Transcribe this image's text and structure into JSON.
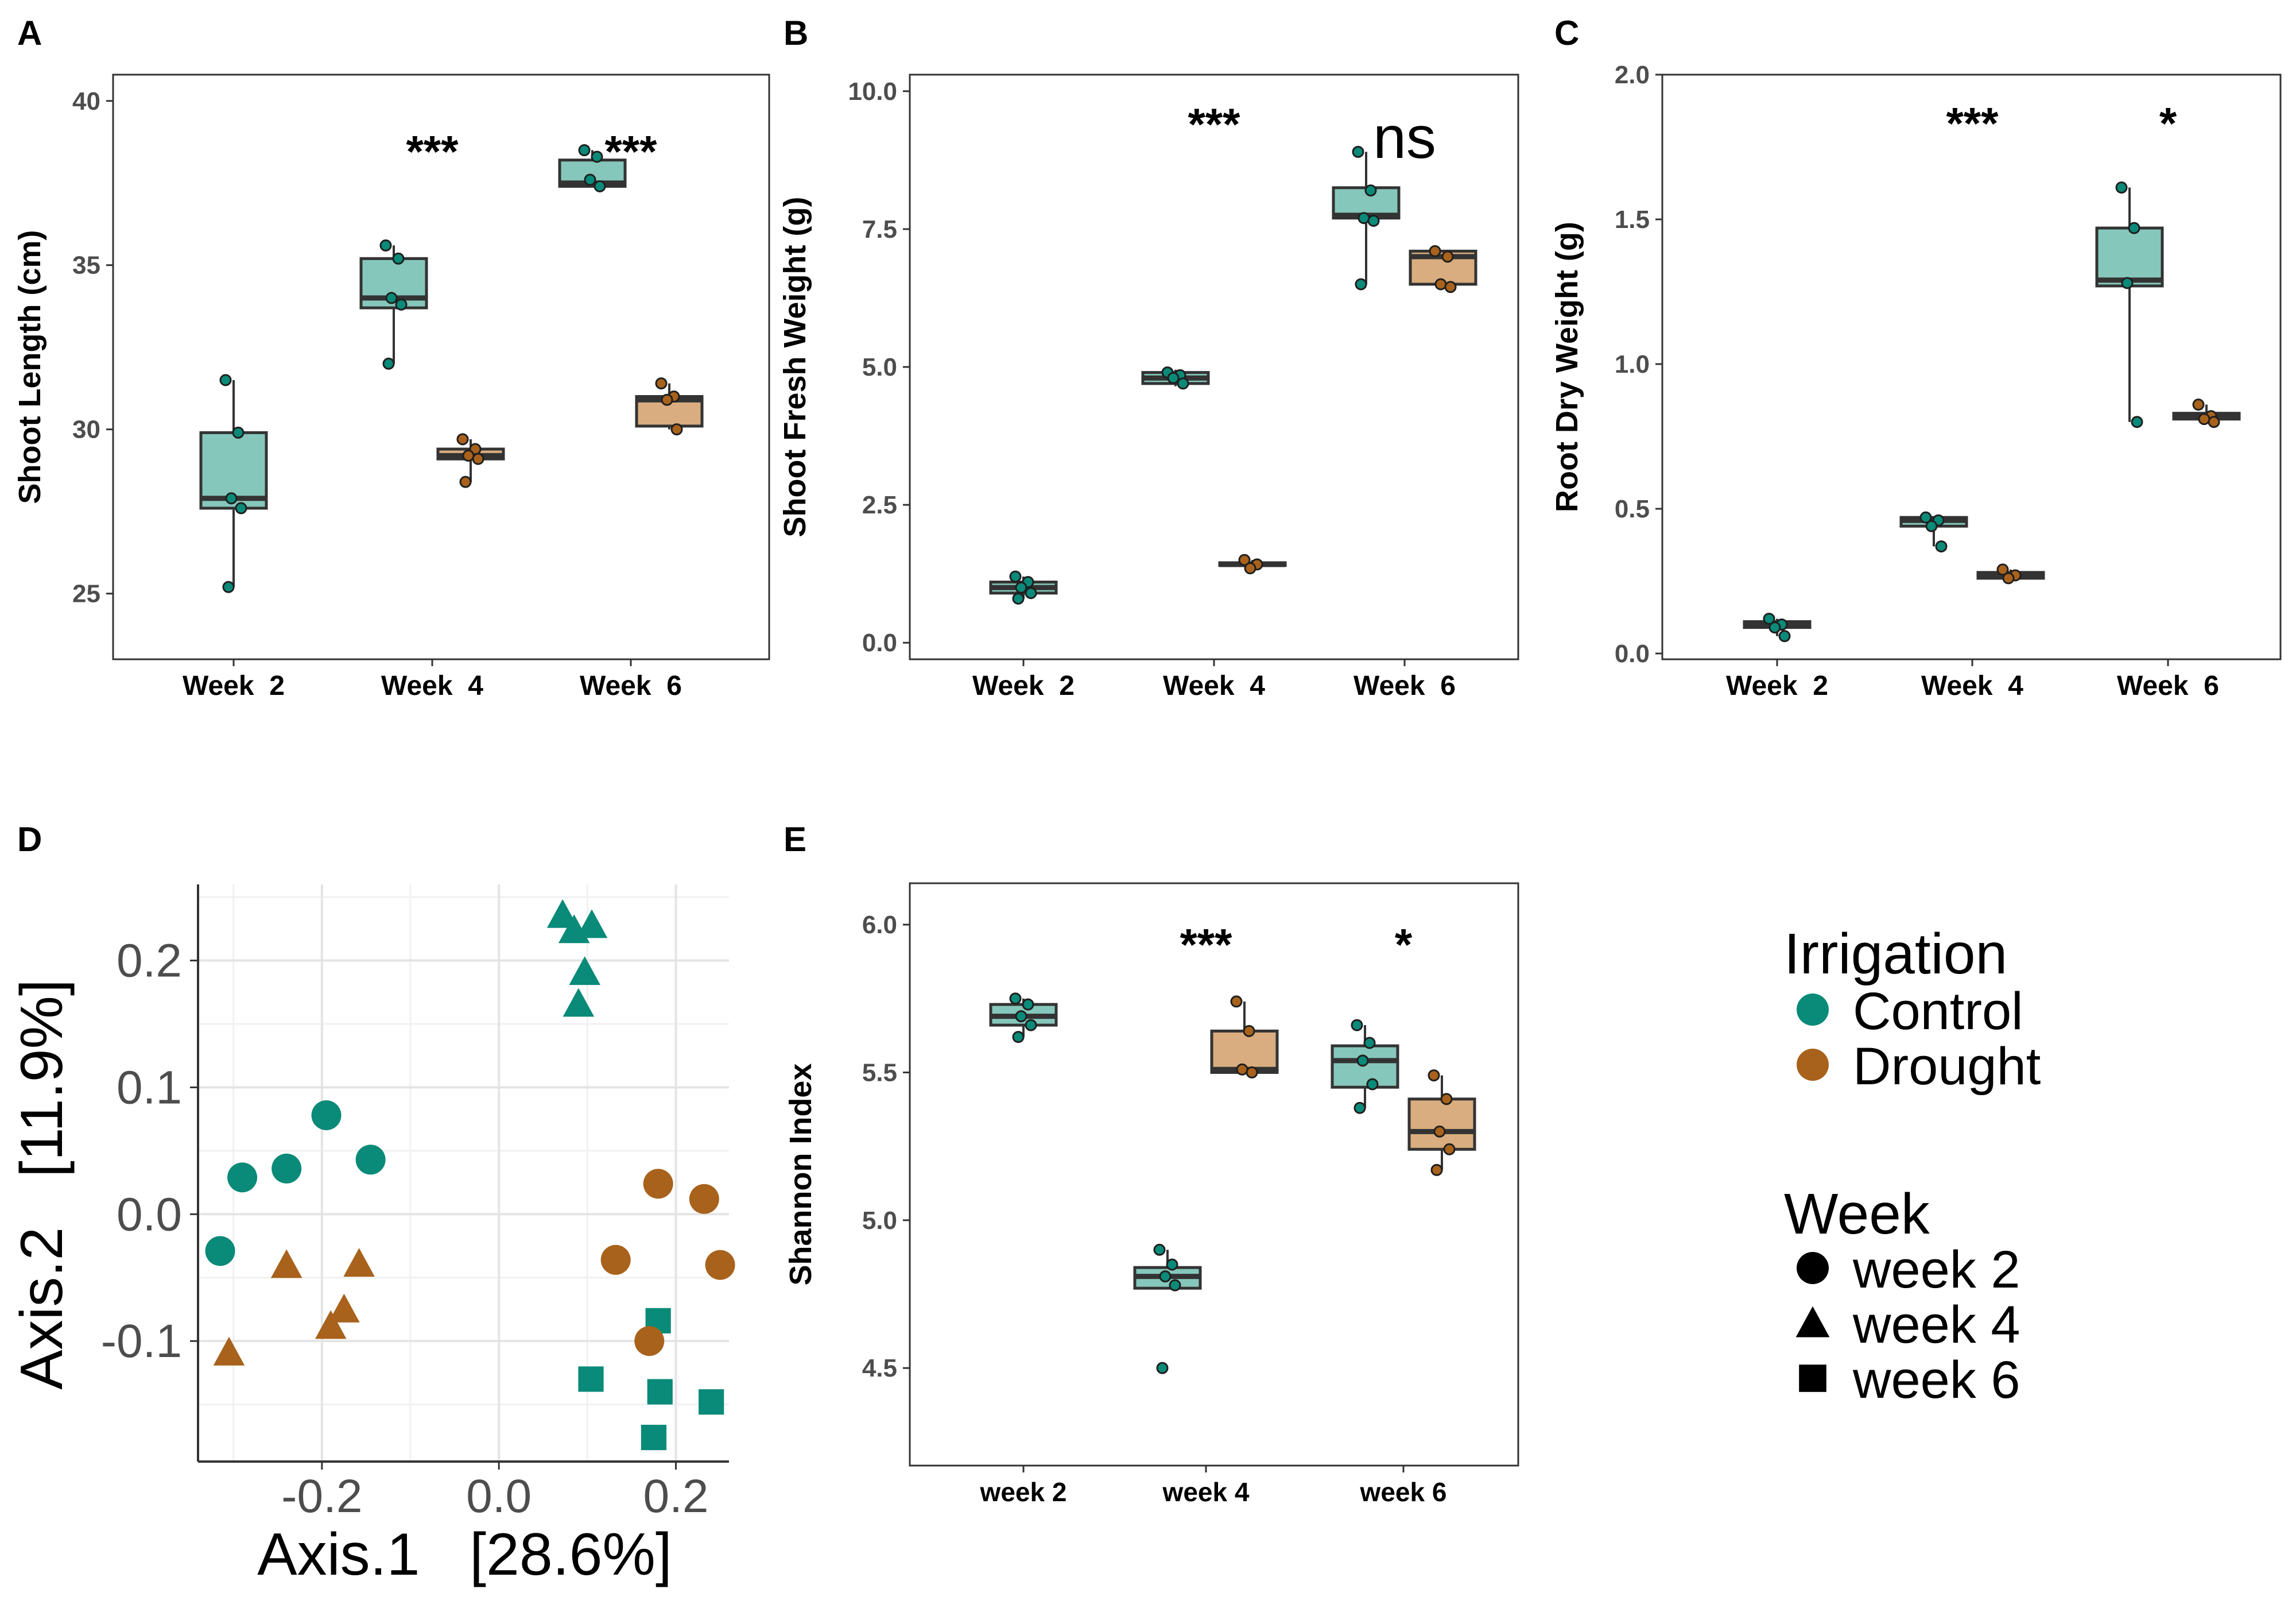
{
  "colors": {
    "control": "#0a8a78",
    "drought": "#a8621c",
    "control_box": "#86c7bb",
    "drought_box": "#d9ad7f",
    "frame": "#333333",
    "grid_major": "#e4e4e4",
    "grid_minor": "#f1f1f1",
    "text": "#000000",
    "tick_text": "#4d4d4d"
  },
  "legend": {
    "irrigation_title": "Irrigation",
    "irrigation_items": [
      {
        "label": "Control",
        "color": "#0a8a78"
      },
      {
        "label": "Drought",
        "color": "#a8621c"
      }
    ],
    "week_title": "Week",
    "week_items": [
      {
        "label": "week 2",
        "shape": "circle"
      },
      {
        "label": "week 4",
        "shape": "triangle"
      },
      {
        "label": "week 6",
        "shape": "square"
      }
    ]
  },
  "chart_data": [
    {
      "panel": "A",
      "type": "box",
      "ylabel": "Shoot Length (cm)",
      "categories": [
        "Week  2",
        "Week  4",
        "Week  6"
      ],
      "ylim": [
        23,
        40.8
      ],
      "yticks": [
        25,
        30,
        35,
        40
      ],
      "tick_labels": [
        "25",
        "30",
        "35",
        "40"
      ],
      "boxes": [
        {
          "cat": 0,
          "group": "Control",
          "q1": 27.6,
          "median": 27.9,
          "q3": 29.9,
          "whisker_low": 25.2,
          "whisker_high": 31.5,
          "points": [
            31.5,
            29.9,
            27.9,
            27.6,
            25.2
          ]
        },
        {
          "cat": 1,
          "group": "Control",
          "q1": 33.7,
          "median": 34.0,
          "q3": 35.2,
          "whisker_low": 32.0,
          "whisker_high": 35.6,
          "points": [
            35.6,
            35.2,
            34.0,
            33.8,
            32.0
          ]
        },
        {
          "cat": 1,
          "group": "Drought",
          "q1": 29.1,
          "median": 29.2,
          "q3": 29.4,
          "whisker_low": 28.4,
          "whisker_high": 29.7,
          "points": [
            29.7,
            29.4,
            29.2,
            29.1,
            28.4
          ]
        },
        {
          "cat": 2,
          "group": "Control",
          "q1": 37.4,
          "median": 37.5,
          "q3": 38.2,
          "whisker_low": 37.4,
          "whisker_high": 38.5,
          "points": [
            38.5,
            38.3,
            37.6,
            37.4
          ]
        },
        {
          "cat": 2,
          "group": "Drought",
          "q1": 30.1,
          "median": 30.9,
          "q3": 31.0,
          "whisker_low": 30.0,
          "whisker_high": 31.4,
          "points": [
            31.4,
            31.0,
            30.9,
            30.0
          ]
        }
      ],
      "annotations": [
        {
          "cat": 1,
          "text": "***",
          "y": 38.8
        },
        {
          "cat": 2,
          "text": "***",
          "y": 38.8
        }
      ]
    },
    {
      "panel": "B",
      "type": "box",
      "ylabel": "Shoot Fresh Weight (g)",
      "categories": [
        "Week  2",
        "Week  4",
        "Week  6"
      ],
      "ylim": [
        -0.3,
        10.3
      ],
      "yticks": [
        0,
        2.5,
        5,
        7.5,
        10
      ],
      "tick_labels": [
        "0.0",
        "2.5",
        "5.0",
        "7.5",
        "10.0"
      ],
      "boxes": [
        {
          "cat": 0,
          "group": "Control",
          "q1": 0.9,
          "median": 1.0,
          "q3": 1.1,
          "whisker_low": 0.8,
          "whisker_high": 1.2,
          "points": [
            1.2,
            1.1,
            1.0,
            0.9,
            0.8
          ]
        },
        {
          "cat": 1,
          "group": "Control",
          "q1": 4.7,
          "median": 4.8,
          "q3": 4.9,
          "whisker_low": 4.65,
          "whisker_high": 4.95,
          "points": [
            4.9,
            4.85,
            4.8,
            4.7
          ]
        },
        {
          "cat": 1,
          "group": "Drought",
          "q1": 1.4,
          "median": 1.42,
          "q3": 1.45,
          "whisker_low": 1.35,
          "whisker_high": 1.5,
          "points": [
            1.5,
            1.42,
            1.35
          ]
        },
        {
          "cat": 2,
          "group": "Control",
          "q1": 7.7,
          "median": 7.75,
          "q3": 8.25,
          "whisker_low": 6.5,
          "whisker_high": 8.9,
          "points": [
            8.9,
            8.2,
            7.7,
            7.65,
            6.5
          ]
        },
        {
          "cat": 2,
          "group": "Drought",
          "q1": 6.5,
          "median": 7.0,
          "q3": 7.1,
          "whisker_low": 6.45,
          "whisker_high": 7.1,
          "points": [
            7.1,
            7.0,
            6.5,
            6.45
          ]
        }
      ],
      "annotations": [
        {
          "cat": 1,
          "text": "***",
          "y": 9.6
        },
        {
          "cat": 2,
          "text": "ns",
          "y": 9.1
        }
      ]
    },
    {
      "panel": "C",
      "type": "box",
      "ylabel": "Root Dry Weight (g)",
      "categories": [
        "Week  2",
        "Week  4",
        "Week  6"
      ],
      "ylim": [
        -0.02,
        2.0
      ],
      "yticks": [
        0,
        0.5,
        1,
        1.5,
        2
      ],
      "tick_labels": [
        "0.0",
        "0.5",
        "1.0",
        "1.5",
        "2.0"
      ],
      "boxes": [
        {
          "cat": 0,
          "group": "Control",
          "q1": 0.09,
          "median": 0.1,
          "q3": 0.11,
          "whisker_low": 0.06,
          "whisker_high": 0.12,
          "points": [
            0.12,
            0.1,
            0.09,
            0.06
          ]
        },
        {
          "cat": 1,
          "group": "Control",
          "q1": 0.44,
          "median": 0.46,
          "q3": 0.47,
          "whisker_low": 0.37,
          "whisker_high": 0.47,
          "points": [
            0.47,
            0.46,
            0.44,
            0.37
          ]
        },
        {
          "cat": 1,
          "group": "Drought",
          "q1": 0.26,
          "median": 0.27,
          "q3": 0.28,
          "whisker_low": 0.26,
          "whisker_high": 0.29,
          "points": [
            0.29,
            0.27,
            0.26
          ]
        },
        {
          "cat": 2,
          "group": "Control",
          "q1": 1.27,
          "median": 1.29,
          "q3": 1.47,
          "whisker_low": 0.8,
          "whisker_high": 1.61,
          "points": [
            1.61,
            1.47,
            1.28,
            0.8
          ]
        },
        {
          "cat": 2,
          "group": "Drought",
          "q1": 0.81,
          "median": 0.82,
          "q3": 0.83,
          "whisker_low": 0.8,
          "whisker_high": 0.86,
          "points": [
            0.86,
            0.82,
            0.81,
            0.8
          ]
        }
      ],
      "annotations": [
        {
          "cat": 1,
          "text": "***",
          "y": 1.87
        },
        {
          "cat": 2,
          "text": "*",
          "y": 1.87
        }
      ]
    },
    {
      "panel": "D",
      "type": "scatter",
      "xlabel": "Axis.1   [28.6%]",
      "ylabel": "Axis.2   [11.9%]",
      "xlim": [
        -0.34,
        0.26
      ],
      "ylim": [
        -0.195,
        0.26
      ],
      "xticks": [
        -0.2,
        0.0,
        0.2
      ],
      "x_tick_labels": [
        "-0.2",
        "0.0",
        "0.2"
      ],
      "yticks": [
        -0.1,
        0.0,
        0.1,
        0.2
      ],
      "y_tick_labels": [
        "-0.1",
        "0.0",
        "0.1",
        "0.2"
      ],
      "series": [
        {
          "name": "Control",
          "week": "week 2",
          "points": [
            [
              -0.195,
              0.078
            ],
            [
              -0.24,
              0.036
            ],
            [
              -0.29,
              0.029
            ],
            [
              -0.145,
              0.043
            ],
            [
              -0.315,
              -0.029
            ]
          ]
        },
        {
          "name": "Control",
          "week": "week 4",
          "points": [
            [
              0.072,
              0.236
            ],
            [
              0.085,
              0.224
            ],
            [
              0.105,
              0.228
            ],
            [
              0.097,
              0.191
            ],
            [
              0.09,
              0.166
            ]
          ]
        },
        {
          "name": "Control",
          "week": "week 6",
          "points": [
            [
              0.18,
              -0.084
            ],
            [
              0.104,
              -0.13
            ],
            [
              0.182,
              -0.14
            ],
            [
              0.24,
              -0.148
            ],
            [
              0.175,
              -0.176
            ]
          ]
        },
        {
          "name": "Drought",
          "week": "week 2",
          "points": [
            [
              0.18,
              0.024
            ],
            [
              0.232,
              0.012
            ],
            [
              0.132,
              -0.036
            ],
            [
              0.25,
              -0.04
            ],
            [
              0.17,
              -0.1
            ]
          ]
        },
        {
          "name": "Drought",
          "week": "week 4",
          "points": [
            [
              -0.24,
              -0.04
            ],
            [
              -0.158,
              -0.039
            ],
            [
              -0.175,
              -0.075
            ],
            [
              -0.19,
              -0.088
            ],
            [
              -0.305,
              -0.109
            ]
          ]
        }
      ]
    },
    {
      "panel": "E",
      "type": "box",
      "ylabel": "Shannon Index",
      "categories": [
        "week 2",
        "week 4",
        "week 6"
      ],
      "ylim": [
        4.17,
        6.14
      ],
      "yticks": [
        4.5,
        5.0,
        5.5,
        6.0
      ],
      "tick_labels": [
        "4.5",
        "5.0",
        "5.5",
        "6.0"
      ],
      "boxes": [
        {
          "cat": 0,
          "group": "Control",
          "q1": 5.66,
          "median": 5.69,
          "q3": 5.73,
          "whisker_low": 5.62,
          "whisker_high": 5.75,
          "points": [
            5.75,
            5.73,
            5.69,
            5.66,
            5.62
          ]
        },
        {
          "cat": 1,
          "group": "Control",
          "q1": 4.77,
          "median": 4.81,
          "q3": 4.84,
          "whisker_low": 4.77,
          "whisker_high": 4.9,
          "points": [
            4.9,
            4.85,
            4.81,
            4.78,
            4.5
          ]
        },
        {
          "cat": 1,
          "group": "Drought",
          "q1": 5.5,
          "median": 5.51,
          "q3": 5.64,
          "whisker_low": 5.5,
          "whisker_high": 5.74,
          "points": [
            5.74,
            5.64,
            5.51,
            5.5
          ]
        },
        {
          "cat": 2,
          "group": "Control",
          "q1": 5.45,
          "median": 5.54,
          "q3": 5.59,
          "whisker_low": 5.38,
          "whisker_high": 5.66,
          "points": [
            5.66,
            5.6,
            5.54,
            5.46,
            5.38
          ]
        },
        {
          "cat": 2,
          "group": "Drought",
          "q1": 5.24,
          "median": 5.3,
          "q3": 5.41,
          "whisker_low": 5.17,
          "whisker_high": 5.49,
          "points": [
            5.49,
            5.41,
            5.3,
            5.24,
            5.17
          ]
        }
      ],
      "annotations": [
        {
          "cat": 1,
          "text": "***",
          "y": 5.97
        },
        {
          "cat": 2,
          "text": "*",
          "y": 5.97
        }
      ]
    }
  ]
}
